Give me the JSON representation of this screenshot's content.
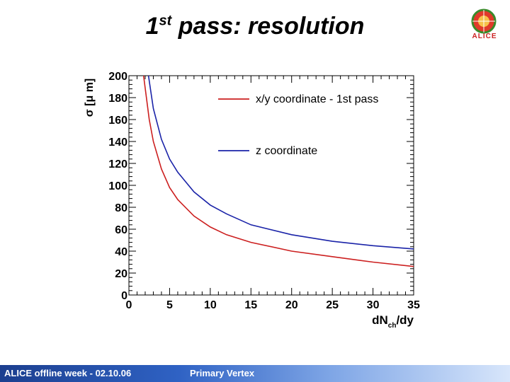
{
  "slide": {
    "title_main": "1",
    "title_sup": "st",
    "title_rest": " pass: resolution",
    "logo_text": "ALICE"
  },
  "footer": {
    "left": "ALICE offline week - 02.10.06",
    "middle": "Primary Vertex"
  },
  "colors": {
    "red_series": "#cc1f1f",
    "blue_series": "#1a23a8",
    "footer_bar": "#2f62c4"
  },
  "chart_data": {
    "type": "line",
    "xlabel_main": "dN",
    "xlabel_sub": "ch",
    "xlabel_tail": "/dy",
    "ylabel": "σ [μ m]",
    "xlim": [
      0,
      35
    ],
    "ylim": [
      0,
      200
    ],
    "x_ticks": [
      0,
      5,
      10,
      15,
      20,
      25,
      30,
      35
    ],
    "y_ticks": [
      0,
      20,
      40,
      60,
      80,
      100,
      120,
      140,
      160,
      180,
      200
    ],
    "legend_position": "top-right",
    "series": [
      {
        "name": "x/y coordinate - 1st pass",
        "color": "#cc1f1f",
        "x": [
          1.8,
          2.5,
          3,
          4,
          5,
          6,
          8,
          10,
          12,
          15,
          20,
          25,
          30,
          35
        ],
        "y": [
          200,
          160,
          140,
          115,
          98,
          87,
          72,
          62,
          55,
          48,
          40,
          35,
          30,
          26
        ]
      },
      {
        "name": "z coordinate",
        "color": "#1a23a8",
        "x": [
          2.4,
          3,
          4,
          5,
          6,
          8,
          10,
          12,
          15,
          20,
          25,
          30,
          35
        ],
        "y": [
          200,
          170,
          142,
          124,
          112,
          94,
          82,
          74,
          64,
          55,
          49,
          45,
          42
        ]
      }
    ]
  }
}
